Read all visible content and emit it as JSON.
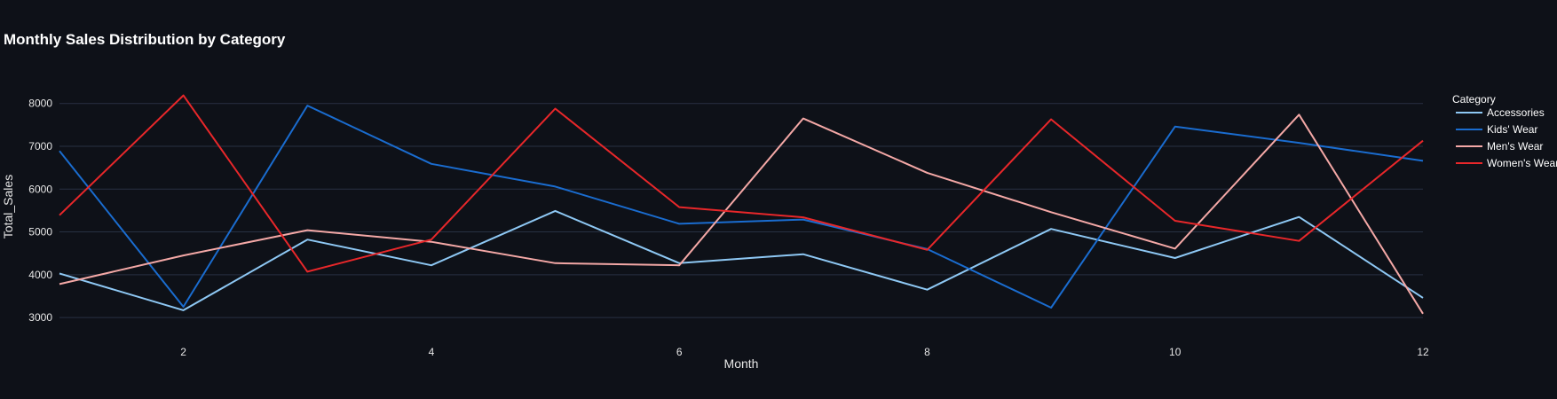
{
  "chart_data": {
    "type": "line",
    "title": "Monthly Sales Distribution by Category",
    "xlabel": "Month",
    "ylabel": "Total_Sales",
    "x": [
      1,
      2,
      3,
      4,
      5,
      6,
      7,
      8,
      9,
      10,
      11,
      12
    ],
    "xlim": [
      1,
      12
    ],
    "ylim": [
      2650,
      8450
    ],
    "x_ticks": [
      2,
      4,
      6,
      8,
      10,
      12
    ],
    "y_ticks": [
      3000,
      4000,
      5000,
      6000,
      7000,
      8000
    ],
    "grid": true,
    "legend": {
      "title": "Category",
      "position": "top-right"
    },
    "series": [
      {
        "name": "Accessories",
        "color": "#8ec8f4",
        "values": [
          4030,
          3170,
          4820,
          4220,
          5490,
          4270,
          4480,
          3650,
          5070,
          4390,
          5350,
          3460
        ]
      },
      {
        "name": "Kids' Wear",
        "color": "#1a6ccf",
        "values": [
          6890,
          3250,
          7950,
          6590,
          6060,
          5190,
          5290,
          4600,
          3230,
          7460,
          7080,
          6660
        ]
      },
      {
        "name": "Men's Wear",
        "color": "#f4a8a6",
        "values": [
          3780,
          4450,
          5040,
          4770,
          4270,
          4220,
          7650,
          6380,
          5460,
          4610,
          7740,
          3090
        ]
      },
      {
        "name": "Women's Wear",
        "color": "#e8272a",
        "values": [
          5390,
          8190,
          4070,
          4820,
          7880,
          5580,
          5340,
          4580,
          7630,
          5260,
          4790,
          7130
        ]
      }
    ]
  }
}
